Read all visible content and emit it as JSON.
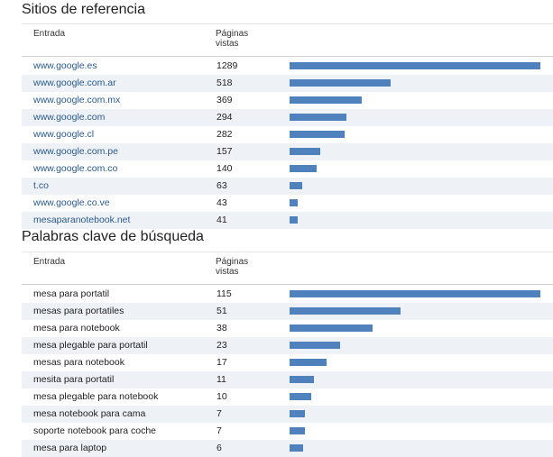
{
  "referrers": {
    "title": "Sitios de referencia",
    "col_entry": "Entrada",
    "col_views_1": "Páginas",
    "col_views_2": "vistas",
    "bar_color": "#4f81bd",
    "rows": [
      {
        "entry": "www.google.es",
        "views": 1289
      },
      {
        "entry": "www.google.com.ar",
        "views": 518
      },
      {
        "entry": "www.google.com.mx",
        "views": 369
      },
      {
        "entry": "www.google.com",
        "views": 294
      },
      {
        "entry": "www.google.cl",
        "views": 282
      },
      {
        "entry": "www.google.com.pe",
        "views": 157
      },
      {
        "entry": "www.google.com.co",
        "views": 140
      },
      {
        "entry": "t.co",
        "views": 63
      },
      {
        "entry": "www.google.co.ve",
        "views": 43
      },
      {
        "entry": "mesaparanotebook.net",
        "views": 41
      }
    ]
  },
  "keywords": {
    "title": "Palabras clave de búsqueda",
    "col_entry": "Entrada",
    "col_views_1": "Páginas",
    "col_views_2": "vistas",
    "bar_color": "#4f81bd",
    "rows": [
      {
        "entry": "mesa para portatil",
        "views": 115
      },
      {
        "entry": "mesas para portatiles",
        "views": 51
      },
      {
        "entry": "mesa para notebook",
        "views": 38
      },
      {
        "entry": "mesa plegable para portatil",
        "views": 23
      },
      {
        "entry": "mesas para notebook",
        "views": 17
      },
      {
        "entry": "mesita para portatil",
        "views": 11
      },
      {
        "entry": "mesa plegable para notebook",
        "views": 10
      },
      {
        "entry": "mesa notebook para cama",
        "views": 7
      },
      {
        "entry": "soporte notebook para coche",
        "views": 7
      },
      {
        "entry": "mesa para laptop",
        "views": 6
      }
    ]
  }
}
